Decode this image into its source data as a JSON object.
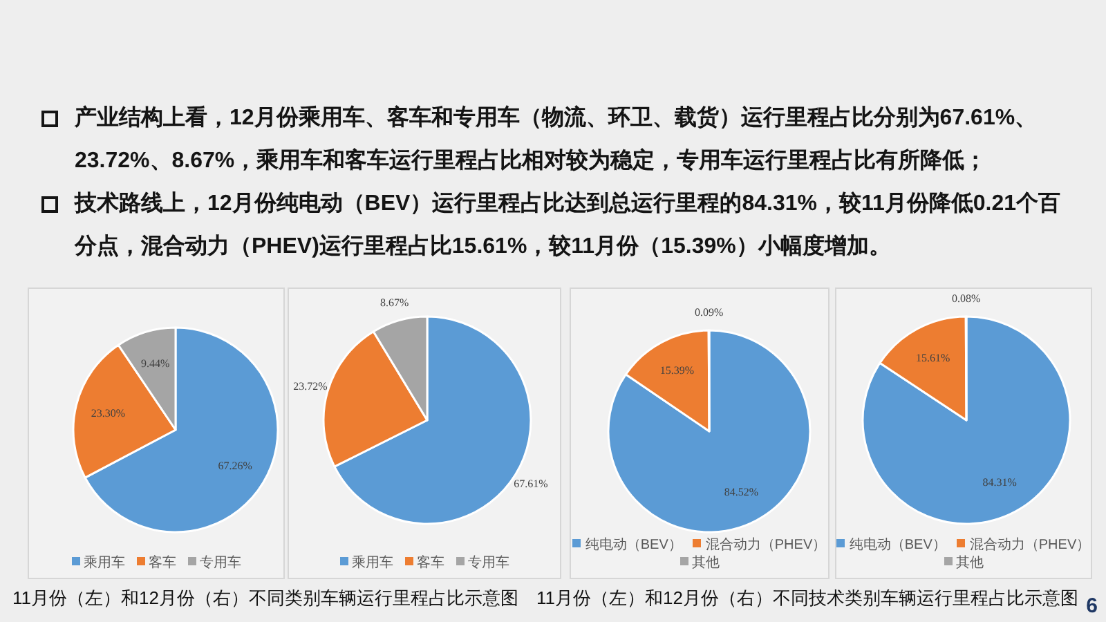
{
  "chart_data": [
    {
      "type": "pie",
      "categories": [
        "乘用车",
        "客车",
        "专用车"
      ],
      "values": [
        67.26,
        23.3,
        9.44
      ],
      "colors": [
        "#5b9bd5",
        "#ed7d31",
        "#a5a5a5"
      ],
      "value_labels": [
        "67.26%",
        "23.30%",
        "9.44%"
      ],
      "legend": "bottom",
      "annotations": [
        "产业结构上看，12月份乘用车、客车和专用车（物流、环卫、载货）运行里程占比分别为67.61%、23.72%、8.67%，乘用车和客车运行里程占比相对较为稳定，专用车运行里程占比有所降低；",
        "11月份（左）和12月份（右）不同类别车辆运行里程占比示意图"
      ]
    },
    {
      "type": "pie",
      "categories": [
        "乘用车",
        "客车",
        "专用车"
      ],
      "values": [
        67.61,
        23.72,
        8.67
      ],
      "colors": [
        "#5b9bd5",
        "#ed7d31",
        "#a5a5a5"
      ],
      "value_labels": [
        "67.61%",
        "23.72%",
        "8.67%"
      ],
      "legend": "bottom"
    },
    {
      "type": "pie",
      "categories": [
        "纯电动（BEV）",
        "混合动力（PHEV）",
        "其他"
      ],
      "values": [
        84.52,
        15.39,
        0.09
      ],
      "colors": [
        "#5b9bd5",
        "#ed7d31",
        "#a5a5a5"
      ],
      "value_labels": [
        "84.52%",
        "15.39%",
        "0.09%"
      ],
      "legend": "bottom",
      "annotations": [
        "技术路线上，12月份纯电动（BEV）运行里程占比达到总运行里程的84.31%，较11月份降低0.21个百分点，混合动力（PHEV)运行里程占比15.61%，较11月份（15.39%）小幅度增加。",
        "11月份（左）和12月份（右）不同技术类别车辆运行里程占比示意图"
      ]
    },
    {
      "type": "pie",
      "categories": [
        "纯电动（BEV）",
        "混合动力（PHEV）",
        "其他"
      ],
      "values": [
        84.31,
        15.61,
        0.08
      ],
      "colors": [
        "#5b9bd5",
        "#ed7d31",
        "#a5a5a5"
      ],
      "value_labels": [
        "84.31%",
        "15.61%",
        "0.08%"
      ],
      "legend": "bottom",
      "annotations": [
        "6"
      ]
    }
  ]
}
